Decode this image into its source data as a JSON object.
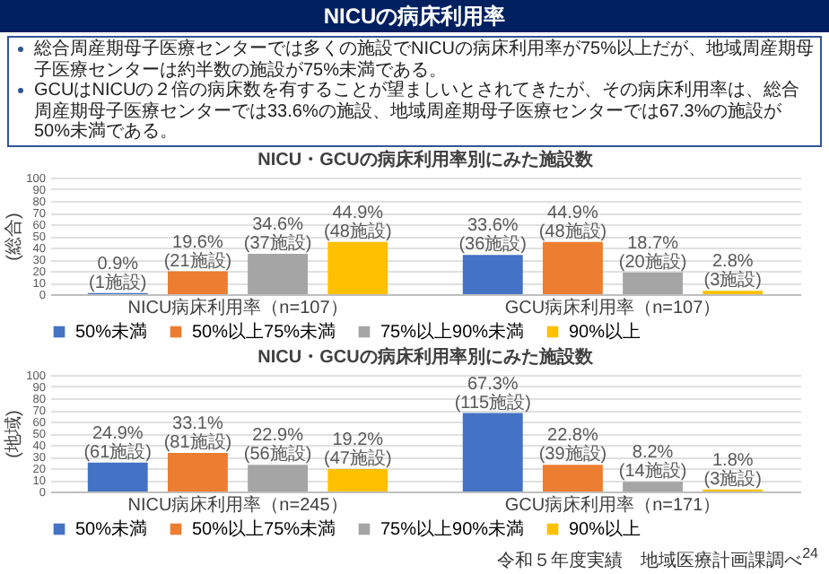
{
  "chart_data": [
    {
      "type": "bar",
      "title": "NICU・GCUの病床利用率別にみた施設数",
      "ylabel": "(総合)",
      "categories": [
        "NICU病床利用率（n=107）",
        "GCU病床利用率（n=107）"
      ],
      "ylim": [
        0,
        100
      ],
      "yticks": [
        0,
        10,
        20,
        30,
        40,
        50,
        60,
        70,
        80,
        90,
        100
      ],
      "grid": "y",
      "legend": "bottom",
      "series": [
        {
          "name": "50%未満",
          "color": "#4472c4",
          "values": [
            0.9,
            33.6
          ],
          "value_labels": [
            "0.9%\n(1施設)",
            "33.6%\n(36施設)"
          ]
        },
        {
          "name": "50%以上75%未満",
          "color": "#ed7d31",
          "values": [
            19.6,
            44.9
          ],
          "value_labels": [
            "19.6%\n(21施設)",
            "44.9%\n(48施設)"
          ]
        },
        {
          "name": "75%以上90%未満",
          "color": "#a5a5a5",
          "values": [
            34.6,
            18.7
          ],
          "value_labels": [
            "34.6%\n(37施設)",
            "18.7%\n(20施設)"
          ]
        },
        {
          "name": "90%以上",
          "color": "#ffc000",
          "values": [
            44.9,
            2.8
          ],
          "value_labels": [
            "44.9%\n(48施設)",
            "2.8%\n(3施設)"
          ]
        }
      ],
      "annotations": [
        "NICUの病床利用率",
        "総合周産期母子医療センターでは多くの施設でNICUの病床利用率が75%以上だが、地域周産期母子医療センターは約半数の施設が75%未満である。",
        "GCUはNICUの２倍の病床数を有することが望ましいとされてきたが、その病床利用率は、総合周産期母子医療センターでは33.6%の施設、地域周産期母子医療センターでは67.3%の施設が50%未満である。"
      ]
    },
    {
      "type": "bar",
      "title": "NICU・GCUの病床利用率別にみた施設数",
      "ylabel": "(地域)",
      "categories": [
        "NICU病床利用率（n=245）",
        "GCU病床利用率（n=171）"
      ],
      "ylim": [
        0,
        100
      ],
      "yticks": [
        0,
        10,
        20,
        30,
        40,
        50,
        60,
        70,
        80,
        90,
        100
      ],
      "grid": "y",
      "legend": "bottom",
      "series": [
        {
          "name": "50%未満",
          "color": "#4472c4",
          "values": [
            24.9,
            67.3
          ],
          "value_labels": [
            "24.9%\n(61施設)",
            "67.3%\n(115施設)"
          ]
        },
        {
          "name": "50%以上75%未満",
          "color": "#ed7d31",
          "values": [
            33.1,
            22.8
          ],
          "value_labels": [
            "33.1%\n(81施設)",
            "22.8%\n(39施設)"
          ]
        },
        {
          "name": "75%以上90%未満",
          "color": "#a5a5a5",
          "values": [
            22.9,
            8.2
          ],
          "value_labels": [
            "22.9%\n(56施設)",
            "8.2%\n(14施設)"
          ]
        },
        {
          "name": "90%以上",
          "color": "#ffc000",
          "values": [
            19.2,
            1.8
          ],
          "value_labels": [
            "19.2%\n(47施設)",
            "1.8%\n(3施設)"
          ]
        }
      ],
      "annotations": [
        "令和５年度実績　地域医療計画課調べ",
        "24"
      ]
    }
  ]
}
